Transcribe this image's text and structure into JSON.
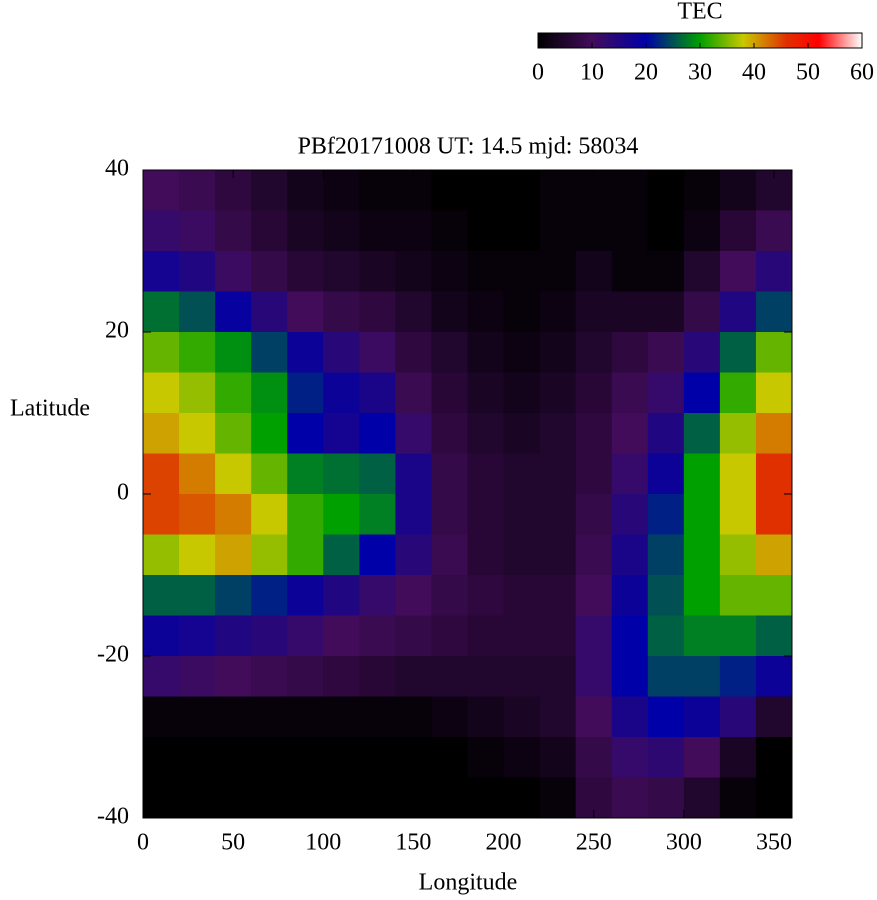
{
  "chart_data": {
    "type": "heatmap",
    "title": "PBf20171008  UT: 14.5  mjd: 58034",
    "x_label": "Longitude",
    "y_label": "Latitude",
    "colorbar_label": "TEC",
    "xlim": [
      0,
      360
    ],
    "xticks": [
      0,
      50,
      100,
      150,
      200,
      250,
      300,
      350
    ],
    "ylim": [
      -40,
      40
    ],
    "yticks": [
      -40,
      -20,
      0,
      20,
      40
    ],
    "clim": [
      0,
      60
    ],
    "cticks": [
      0,
      10,
      20,
      30,
      40,
      50,
      60
    ],
    "colorscale": [
      [
        0,
        "#000000"
      ],
      [
        10,
        "#420c5a"
      ],
      [
        20,
        "#0000a8"
      ],
      [
        30,
        "#00a000"
      ],
      [
        38,
        "#c8c800"
      ],
      [
        46,
        "#e03000"
      ],
      [
        52,
        "#ff0000"
      ],
      [
        60,
        "#ffffff"
      ]
    ],
    "x": [
      10,
      30,
      50,
      70,
      90,
      110,
      130,
      150,
      170,
      190,
      210,
      230,
      250,
      270,
      290,
      310,
      330,
      350
    ],
    "y": [
      37.5,
      32.5,
      27.5,
      22.5,
      17.5,
      12.5,
      7.5,
      2.5,
      -2.5,
      -7.5,
      -12.5,
      -17.5,
      -22.5,
      -27.5,
      -32.5,
      -37.5
    ],
    "z": [
      [
        10,
        9,
        7,
        5,
        3,
        2,
        1,
        1,
        0,
        0,
        0,
        1,
        1,
        1,
        0,
        1,
        3,
        5
      ],
      [
        12,
        11,
        8,
        6,
        4,
        3,
        2,
        2,
        1,
        0,
        0,
        1,
        1,
        1,
        0,
        2,
        6,
        9
      ],
      [
        17,
        15,
        11,
        8,
        6,
        5,
        4,
        3,
        2,
        1,
        1,
        1,
        3,
        1,
        1,
        5,
        10,
        14
      ],
      [
        27,
        25,
        19,
        14,
        10,
        8,
        7,
        5,
        3,
        2,
        1,
        2,
        4,
        4,
        4,
        8,
        15,
        24
      ],
      [
        34,
        32,
        29,
        24,
        18,
        14,
        11,
        7,
        5,
        3,
        2,
        3,
        5,
        7,
        9,
        14,
        26,
        34
      ],
      [
        38,
        36,
        32,
        29,
        22,
        18,
        16,
        9,
        6,
        4,
        3,
        4,
        6,
        9,
        12,
        20,
        32,
        38
      ],
      [
        40,
        38,
        34,
        30,
        20,
        17,
        20,
        12,
        7,
        5,
        4,
        5,
        7,
        10,
        15,
        26,
        36,
        42
      ],
      [
        45,
        42,
        38,
        34,
        28,
        27,
        26,
        16,
        8,
        6,
        5,
        5,
        7,
        12,
        18,
        30,
        38,
        46
      ],
      [
        45,
        44,
        42,
        38,
        32,
        30,
        28,
        16,
        8,
        6,
        5,
        5,
        8,
        14,
        22,
        30,
        38,
        46
      ],
      [
        36,
        38,
        40,
        36,
        32,
        26,
        20,
        14,
        9,
        6,
        5,
        5,
        9,
        16,
        24,
        30,
        36,
        40
      ],
      [
        26,
        26,
        24,
        22,
        18,
        15,
        12,
        10,
        8,
        7,
        6,
        6,
        10,
        18,
        25,
        30,
        34,
        34
      ],
      [
        18,
        17,
        15,
        14,
        12,
        10,
        9,
        8,
        7,
        6,
        6,
        6,
        12,
        20,
        26,
        28,
        28,
        26
      ],
      [
        12,
        11,
        10,
        9,
        8,
        7,
        6,
        5,
        5,
        5,
        5,
        5,
        12,
        20,
        24,
        24,
        22,
        18
      ],
      [
        1,
        1,
        1,
        1,
        1,
        1,
        1,
        1,
        2,
        3,
        4,
        5,
        10,
        16,
        20,
        18,
        14,
        5
      ],
      [
        0,
        0,
        0,
        0,
        0,
        0,
        0,
        0,
        0,
        1,
        2,
        3,
        8,
        12,
        13,
        10,
        4,
        0
      ],
      [
        0,
        0,
        0,
        0,
        0,
        0,
        0,
        0,
        0,
        0,
        0,
        1,
        7,
        9,
        8,
        5,
        1,
        0
      ]
    ]
  }
}
